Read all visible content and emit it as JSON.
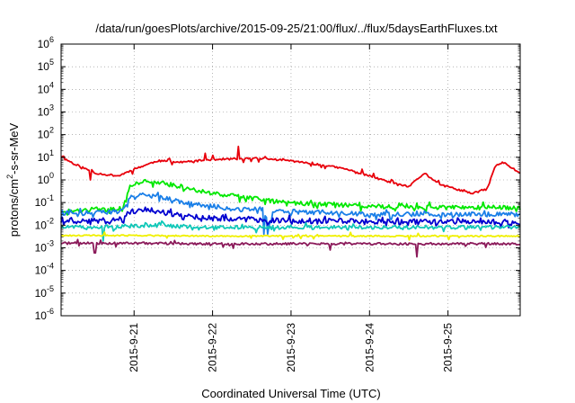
{
  "chart_data": {
    "type": "line",
    "title": "/data/run/goesPlots/archive/2015-09-25/21:00/flux/../flux/5daysEarthFluxes.txt",
    "xlabel": "Coordinated Universal Time (UTC)",
    "ylabel": "protons/cm2-s-sr-MeV",
    "ylabel_parts": {
      "pre": "protons/cm",
      "sup": "2",
      "post": "-s-sr-MeV"
    },
    "yscale": "log",
    "ylim_exp": [
      -6,
      6
    ],
    "y_ticks": [
      {
        "base": "10",
        "exp": "-6"
      },
      {
        "base": "10",
        "exp": "-5"
      },
      {
        "base": "10",
        "exp": "-4"
      },
      {
        "base": "10",
        "exp": "-3"
      },
      {
        "base": "10",
        "exp": "-2"
      },
      {
        "base": "10",
        "exp": "-1"
      },
      {
        "base": "10",
        "exp": "0"
      },
      {
        "base": "10",
        "exp": "1"
      },
      {
        "base": "10",
        "exp": "2"
      },
      {
        "base": "10",
        "exp": "3"
      },
      {
        "base": "10",
        "exp": "4"
      },
      {
        "base": "10",
        "exp": "5"
      },
      {
        "base": "10",
        "exp": "6"
      }
    ],
    "xlim_days": [
      20.07,
      25.92
    ],
    "x_ticks": [
      {
        "label": "2015-9-21",
        "day": 21
      },
      {
        "label": "2015-9-22",
        "day": 22
      },
      {
        "label": "2015-9-23",
        "day": 23
      },
      {
        "label": "2015-9-24",
        "day": 24
      },
      {
        "label": "2015-9-25",
        "day": 25
      }
    ],
    "grid": true,
    "series": [
      {
        "color": "#e8000b",
        "level": 0.45,
        "noise": 0.1,
        "noise_amp": 0.04,
        "seed": 11,
        "keys": [
          [
            20.07,
            10
          ],
          [
            20.25,
            5
          ],
          [
            20.5,
            2
          ],
          [
            20.8,
            1.5
          ],
          [
            21.0,
            3
          ],
          [
            21.3,
            7
          ],
          [
            21.6,
            6
          ],
          [
            22.0,
            8
          ],
          [
            22.3,
            8.5
          ],
          [
            22.6,
            9
          ],
          [
            23.0,
            7
          ],
          [
            23.3,
            5
          ],
          [
            23.5,
            4
          ],
          [
            23.7,
            3
          ],
          [
            24.0,
            1.5
          ],
          [
            24.3,
            0.7
          ],
          [
            24.5,
            0.5
          ],
          [
            24.7,
            2
          ],
          [
            24.9,
            0.6
          ],
          [
            25.1,
            0.4
          ],
          [
            25.3,
            0.25
          ],
          [
            25.5,
            0.4
          ],
          [
            25.6,
            4
          ],
          [
            25.7,
            6
          ],
          [
            25.92,
            2
          ]
        ],
        "spikes": [
          [
            22.33,
            30
          ],
          [
            21.9,
            15
          ],
          [
            20.45,
            1.0
          ]
        ]
      },
      {
        "color": "#00e800",
        "level": 0.0,
        "noise": 0.18,
        "noise_amp": 0.1,
        "seed": 21,
        "keys": [
          [
            20.07,
            0.04
          ],
          [
            20.5,
            0.05
          ],
          [
            20.85,
            0.05
          ],
          [
            20.95,
            0.6
          ],
          [
            21.2,
            0.9
          ],
          [
            21.5,
            0.6
          ],
          [
            21.8,
            0.35
          ],
          [
            22.0,
            0.25
          ],
          [
            22.3,
            0.2
          ],
          [
            22.7,
            0.12
          ],
          [
            23.0,
            0.1
          ],
          [
            23.5,
            0.08
          ],
          [
            24.0,
            0.07
          ],
          [
            24.5,
            0.06
          ],
          [
            25.0,
            0.06
          ],
          [
            25.92,
            0.06
          ]
        ],
        "spikes": []
      },
      {
        "color": "#1a7fe8",
        "level": 0.0,
        "noise": 0.2,
        "noise_amp": 0.1,
        "seed": 31,
        "keys": [
          [
            20.07,
            0.03
          ],
          [
            20.5,
            0.035
          ],
          [
            20.85,
            0.04
          ],
          [
            20.95,
            0.18
          ],
          [
            21.1,
            0.25
          ],
          [
            21.4,
            0.15
          ],
          [
            21.7,
            0.09
          ],
          [
            22.0,
            0.07
          ],
          [
            22.3,
            0.05
          ],
          [
            22.65,
            0.05
          ],
          [
            22.72,
            0.01
          ],
          [
            22.78,
            0.04
          ],
          [
            23.0,
            0.04
          ],
          [
            23.5,
            0.035
          ],
          [
            24.0,
            0.03
          ],
          [
            24.5,
            0.03
          ],
          [
            25.0,
            0.03
          ],
          [
            25.92,
            0.03
          ]
        ],
        "spikes": [
          [
            22.65,
            0.004
          ],
          [
            22.7,
            0.004
          ]
        ]
      },
      {
        "color": "#0000d0",
        "level": 0.0,
        "noise": 0.22,
        "noise_amp": 0.12,
        "seed": 41,
        "keys": [
          [
            20.07,
            0.015
          ],
          [
            20.5,
            0.015
          ],
          [
            20.85,
            0.018
          ],
          [
            20.95,
            0.04
          ],
          [
            21.15,
            0.05
          ],
          [
            21.4,
            0.035
          ],
          [
            21.7,
            0.025
          ],
          [
            22.0,
            0.02
          ],
          [
            22.5,
            0.018
          ],
          [
            23.0,
            0.016
          ],
          [
            23.5,
            0.015
          ],
          [
            24.0,
            0.014
          ],
          [
            24.5,
            0.014
          ],
          [
            25.0,
            0.014
          ],
          [
            25.92,
            0.014
          ]
        ],
        "spikes": []
      },
      {
        "color": "#10c8b8",
        "level": 0.0,
        "noise": 0.15,
        "noise_amp": 0.08,
        "seed": 51,
        "keys": [
          [
            20.07,
            0.008
          ],
          [
            20.9,
            0.009
          ],
          [
            21.2,
            0.01
          ],
          [
            22.0,
            0.008
          ],
          [
            23.0,
            0.008
          ],
          [
            24.0,
            0.008
          ],
          [
            25.0,
            0.008
          ],
          [
            25.92,
            0.008
          ]
        ],
        "spikes": [
          [
            20.6,
            0.002
          ]
        ]
      },
      {
        "color": "#f0f000",
        "level": 0.0,
        "noise": 0.06,
        "noise_amp": 0.03,
        "seed": 61,
        "keys": [
          [
            20.07,
            0.0035
          ],
          [
            21.0,
            0.0035
          ],
          [
            22.0,
            0.0033
          ],
          [
            23.0,
            0.0033
          ],
          [
            24.0,
            0.0033
          ],
          [
            25.0,
            0.0033
          ],
          [
            25.92,
            0.0033
          ]
        ],
        "spikes": []
      },
      {
        "color": "#8b1a5a",
        "level": 0.0,
        "noise": 0.08,
        "noise_amp": 0.05,
        "seed": 71,
        "keys": [
          [
            20.07,
            0.0016
          ],
          [
            21.0,
            0.0016
          ],
          [
            22.0,
            0.0015
          ],
          [
            23.0,
            0.0015
          ],
          [
            24.0,
            0.0015
          ],
          [
            25.0,
            0.0015
          ],
          [
            25.92,
            0.0015
          ]
        ],
        "spikes": [
          [
            20.5,
            0.0006
          ],
          [
            24.6,
            0.0004
          ],
          [
            23.5,
            0.0008
          ]
        ]
      }
    ]
  }
}
